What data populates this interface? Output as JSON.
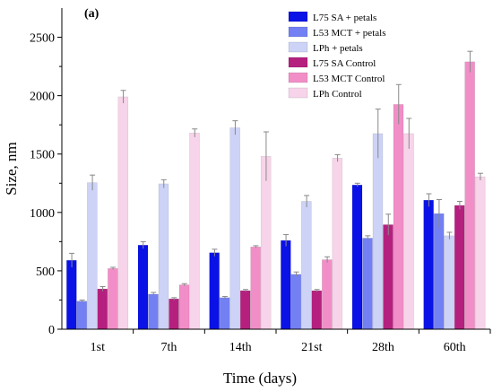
{
  "chart_data": {
    "type": "bar",
    "panel_label": "(a)",
    "xlabel": "Time (days)",
    "ylabel": "Size, nm",
    "ylim": [
      0,
      2750
    ],
    "yticks": [
      0,
      500,
      1000,
      1500,
      2000,
      2500
    ],
    "ytick_labels": [
      "0",
      "500",
      "1000",
      "1500",
      "2000",
      "2500"
    ],
    "categories": [
      "1st",
      "7th",
      "14th",
      "21st",
      "28th",
      "60th"
    ],
    "legend_position": "top-right",
    "grid": false,
    "error_bars": true,
    "series": [
      {
        "name": "L75 SA + petals",
        "color": "#0a12e6",
        "values": [
          590,
          720,
          655,
          760,
          1235,
          1105
        ],
        "errors": [
          60,
          30,
          30,
          50,
          15,
          55
        ]
      },
      {
        "name": "L53 MCT + petals",
        "color": "#7380f4",
        "values": [
          240,
          300,
          270,
          470,
          780,
          990
        ],
        "errors": [
          10,
          15,
          10,
          20,
          20,
          120
        ]
      },
      {
        "name": "LPh + petals",
        "color": "#cdd3f6",
        "values": [
          1255,
          1245,
          1725,
          1095,
          1675,
          800
        ],
        "errors": [
          65,
          35,
          60,
          50,
          210,
          30
        ]
      },
      {
        "name": "L75 SA Control",
        "color": "#b5207f",
        "values": [
          345,
          260,
          330,
          330,
          895,
          1060
        ],
        "errors": [
          20,
          10,
          10,
          10,
          90,
          35
        ]
      },
      {
        "name": "L53 MCT Control",
        "color": "#f28ec7",
        "values": [
          520,
          380,
          705,
          595,
          1925,
          2290
        ],
        "errors": [
          10,
          10,
          10,
          25,
          170,
          90
        ]
      },
      {
        "name": "LPh Control",
        "color": "#f7d4e9",
        "values": [
          1990,
          1680,
          1480,
          1465,
          1675,
          1305
        ],
        "errors": [
          55,
          35,
          210,
          30,
          130,
          30
        ]
      }
    ]
  }
}
